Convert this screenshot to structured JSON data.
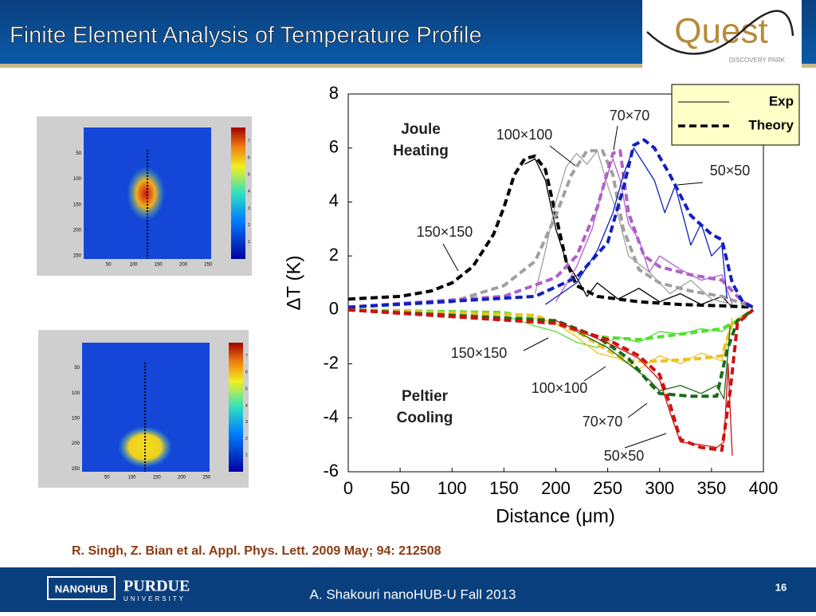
{
  "header": {
    "title": "Finite Element Analysis of Temperature Profile",
    "logo": "Quest",
    "logo_sub": "DISCOVERY PARK"
  },
  "heatmaps": [
    {
      "xticks": [
        50,
        100,
        150,
        200,
        250
      ],
      "yticks": [
        50,
        100,
        150,
        200,
        250
      ],
      "colorbar_ticks": [
        1,
        2,
        3,
        4,
        5,
        6,
        7
      ]
    },
    {
      "xticks": [
        50,
        100,
        150,
        200,
        250
      ],
      "yticks": [
        50,
        100,
        150,
        200,
        250
      ],
      "colorbar_ticks": [
        1,
        2,
        3,
        4,
        5,
        6,
        7
      ]
    }
  ],
  "chart_data": {
    "type": "line",
    "x_label": "Distance (μm)",
    "y_label": "ΔT (K)",
    "xlim": [
      0,
      400
    ],
    "ylim": [
      -6,
      8
    ],
    "xticks": [
      0,
      50,
      100,
      150,
      200,
      250,
      300,
      350,
      400
    ],
    "yticks": [
      -6,
      -4,
      -2,
      0,
      2,
      4,
      6,
      8
    ],
    "legend": [
      {
        "label": "Exp",
        "style": "solid"
      },
      {
        "label": "Theory",
        "style": "dashed"
      }
    ],
    "annotations": [
      {
        "lines": [
          "Joule",
          "Heating"
        ]
      },
      {
        "lines": [
          "Peltier",
          "Cooling"
        ]
      },
      {
        "lines": [
          "100×100"
        ]
      },
      {
        "lines": [
          "70×70"
        ]
      },
      {
        "lines": [
          "50×50"
        ]
      },
      {
        "lines": [
          "150×150"
        ]
      },
      {
        "lines": [
          "150×150"
        ]
      },
      {
        "lines": [
          "100×100"
        ]
      },
      {
        "lines": [
          "70×70"
        ]
      },
      {
        "lines": [
          "50×50"
        ]
      }
    ],
    "series": [
      {
        "color": "#000000",
        "style": "dashed",
        "x": [
          0,
          50,
          80,
          100,
          120,
          140,
          150,
          160,
          170,
          180,
          190,
          200,
          210,
          220,
          240,
          280,
          320,
          360,
          390
        ],
        "values": [
          0.4,
          0.5,
          0.7,
          1.0,
          1.6,
          2.8,
          3.8,
          5.0,
          5.6,
          5.7,
          5.2,
          3.5,
          1.8,
          0.9,
          0.5,
          0.3,
          0.2,
          0.15,
          0.1
        ]
      },
      {
        "color": "#000000",
        "style": "solid",
        "x": [
          170,
          180,
          190,
          200,
          210,
          220,
          230,
          240,
          260,
          280,
          300,
          320,
          340,
          360,
          370
        ],
        "values": [
          5.4,
          5.6,
          4.8,
          3.0,
          1.8,
          1.2,
          0.5,
          1.0,
          0.4,
          0.8,
          0.3,
          0.6,
          0.2,
          0.5,
          0.1
        ]
      },
      {
        "color": "#a0a0a0",
        "style": "dashed",
        "x": [
          0,
          100,
          150,
          180,
          200,
          215,
          230,
          245,
          255,
          265,
          280,
          300,
          330,
          360,
          390
        ],
        "values": [
          0.1,
          0.3,
          0.9,
          1.8,
          3.5,
          5.0,
          5.9,
          5.9,
          5.0,
          3.0,
          1.5,
          1.0,
          0.7,
          0.5,
          0.1
        ]
      },
      {
        "color": "#a0a0a0",
        "style": "solid",
        "x": [
          180,
          190,
          200,
          210,
          220,
          230,
          240,
          250,
          260,
          270,
          290,
          310,
          330,
          350,
          370
        ],
        "values": [
          0.6,
          2.2,
          4.0,
          5.3,
          5.8,
          5.4,
          5.9,
          4.6,
          3.5,
          2.0,
          1.4,
          0.6,
          1.1,
          0.4,
          0.2
        ]
      },
      {
        "color": "#b060c8",
        "style": "dashed",
        "x": [
          0,
          150,
          200,
          220,
          240,
          255,
          262,
          270,
          285,
          300,
          330,
          360,
          380,
          390
        ],
        "values": [
          0.1,
          0.5,
          1.2,
          2.0,
          3.8,
          5.8,
          5.9,
          3.6,
          2.0,
          1.6,
          1.3,
          1.1,
          0.3,
          0.1
        ]
      },
      {
        "color": "#b060c8",
        "style": "solid",
        "x": [
          200,
          220,
          235,
          245,
          255,
          262,
          270,
          280,
          290,
          300,
          320,
          340,
          360,
          370
        ],
        "values": [
          0.3,
          1.6,
          3.0,
          4.5,
          5.6,
          4.8,
          3.2,
          2.6,
          1.4,
          2.0,
          1.5,
          1.1,
          1.3,
          0.2
        ]
      },
      {
        "color": "#1020c0",
        "style": "dashed",
        "x": [
          0,
          180,
          220,
          250,
          265,
          275,
          285,
          295,
          310,
          330,
          350,
          360,
          370,
          380,
          390
        ],
        "values": [
          0.1,
          0.5,
          1.2,
          2.5,
          4.5,
          6.1,
          6.3,
          6.0,
          5.0,
          3.5,
          2.8,
          2.6,
          1.0,
          0.3,
          0.1
        ]
      },
      {
        "color": "#1020c0",
        "style": "solid",
        "x": [
          190,
          220,
          240,
          255,
          265,
          275,
          285,
          295,
          305,
          315,
          330,
          340,
          350,
          360,
          365
        ],
        "values": [
          0.2,
          1.0,
          2.2,
          3.6,
          5.0,
          6.0,
          5.4,
          4.8,
          3.6,
          4.6,
          2.4,
          3.2,
          2.0,
          2.4,
          0.4
        ]
      },
      {
        "color": "#50e030",
        "style": "dashed",
        "x": [
          0,
          150,
          200,
          240,
          280,
          320,
          360,
          380,
          390
        ],
        "values": [
          0,
          -0.1,
          -0.5,
          -1.0,
          -1.1,
          -0.9,
          -0.7,
          -0.3,
          0
        ]
      },
      {
        "color": "#50e030",
        "style": "solid",
        "x": [
          150,
          180,
          200,
          220,
          240,
          260,
          280,
          300,
          320,
          340,
          360,
          380
        ],
        "values": [
          -0.2,
          -0.6,
          -0.8,
          -1.2,
          -1.4,
          -1.0,
          -1.2,
          -0.8,
          -0.9,
          -0.7,
          -0.8,
          -0.2
        ]
      },
      {
        "color": "#f0c020",
        "style": "dashed",
        "x": [
          0,
          180,
          220,
          250,
          270,
          300,
          340,
          360,
          370,
          390
        ],
        "values": [
          0,
          -0.2,
          -0.8,
          -1.5,
          -1.9,
          -1.9,
          -1.8,
          -1.7,
          -0.5,
          0
        ]
      },
      {
        "color": "#f0c020",
        "style": "solid",
        "x": [
          180,
          200,
          220,
          240,
          260,
          280,
          300,
          320,
          340,
          360,
          370
        ],
        "values": [
          -0.3,
          -0.5,
          -1.0,
          -1.6,
          -1.8,
          -2.2,
          -1.7,
          -2.0,
          -1.6,
          -1.9,
          -0.3
        ]
      },
      {
        "color": "#1a6a1a",
        "style": "dashed",
        "x": [
          0,
          200,
          240,
          270,
          290,
          300,
          330,
          355,
          365,
          375,
          390
        ],
        "values": [
          0,
          -0.4,
          -1.0,
          -1.8,
          -2.7,
          -3.1,
          -3.2,
          -3.2,
          -1.5,
          -0.4,
          0
        ]
      },
      {
        "color": "#1a6a1a",
        "style": "solid",
        "x": [
          220,
          250,
          270,
          290,
          300,
          320,
          340,
          355,
          362,
          368
        ],
        "values": [
          -0.8,
          -1.4,
          -2.0,
          -2.6,
          -3.0,
          -2.8,
          -3.1,
          -2.8,
          -3.3,
          -0.6
        ]
      },
      {
        "color": "#d01010",
        "style": "dashed",
        "x": [
          0,
          200,
          250,
          280,
          300,
          310,
          320,
          340,
          360,
          368,
          375,
          390
        ],
        "values": [
          0,
          -0.5,
          -1.1,
          -1.7,
          -2.4,
          -3.5,
          -4.8,
          -5.1,
          -5.2,
          -3.0,
          -0.5,
          0
        ]
      },
      {
        "color": "#d01010",
        "style": "solid",
        "x": [
          200,
          230,
          260,
          280,
          300,
          310,
          320,
          340,
          355,
          362,
          366,
          370
        ],
        "values": [
          -0.4,
          -0.9,
          -1.4,
          -1.8,
          -2.6,
          -3.8,
          -4.9,
          -5.0,
          -5.1,
          -4.9,
          -2.0,
          -5.4
        ]
      }
    ]
  },
  "citation": "R. Singh, Z. Bian et al. Appl. Phys. Lett. 2009 May; 94: 212508",
  "footer": {
    "logo1": "NANOHUB",
    "logo2": "PURDUE",
    "logo2_sub": "UNIVERSITY",
    "text": "A. Shakouri nanoHUB-U Fall 2013",
    "page": "16"
  }
}
